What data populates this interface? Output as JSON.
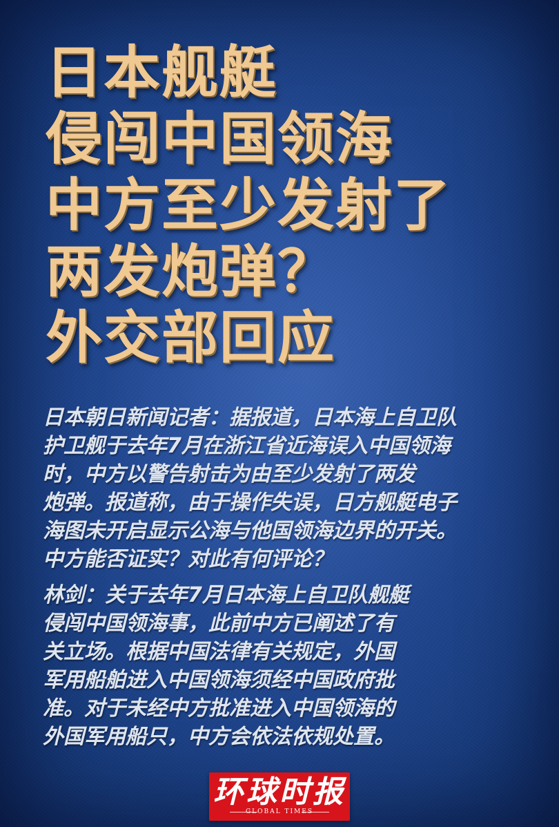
{
  "headline": {
    "lines": [
      "日本舰艇",
      "侵闯中国领海",
      "中方至少发射了",
      "两发炮弹？",
      "外交部回应"
    ]
  },
  "question": {
    "lines": [
      "日本朝日新闻记者：据报道，日本海上自卫队",
      "护卫舰于去年7月在浙江省近海误入中国领海",
      "时，中方以警告射击为由至少发射了两发",
      "炮弹。报道称，由于操作失误，日方舰艇电子",
      "海图未开启显示公海与他国领海边界的开关。",
      "中方能否证实？对此有何评论？"
    ]
  },
  "answer": {
    "lines": [
      "林剑：关于去年7月日本海上自卫队舰艇",
      "侵闯中国领海事，此前中方已阐述了有",
      "关立场。根据中国法律有关规定，外国",
      "军用船舶进入中国领海须经中国政府批",
      "准。对于未经中方批准进入中国领海的",
      "外国军用船只，中方会依法依规处置。"
    ]
  },
  "logo": {
    "cn": "环球时报",
    "en": "GLOBAL TIMES"
  },
  "colors": {
    "background": "#1d3f82",
    "headline": "#efc892",
    "body": "#dfe5ee",
    "logo": "#d7141b"
  }
}
